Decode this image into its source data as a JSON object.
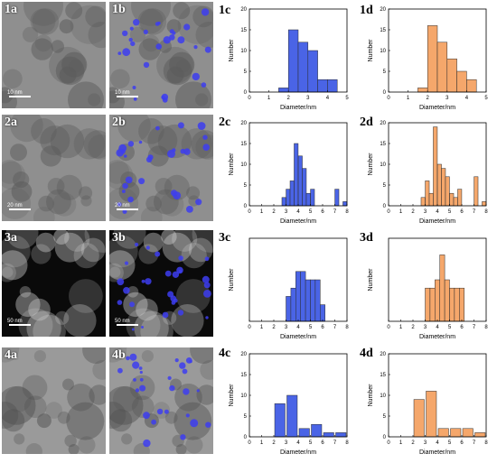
{
  "images": [
    {
      "label": "1a",
      "scale": "10 nm",
      "tone": "tem",
      "np": false
    },
    {
      "label": "1b",
      "scale": "10 nm",
      "tone": "tem",
      "np": true
    },
    {
      "label": "2a",
      "scale": "20 nm",
      "tone": "tem",
      "np": false
    },
    {
      "label": "2b",
      "scale": "20 nm",
      "tone": "tem",
      "np": true
    },
    {
      "label": "3a",
      "scale": "50 nm",
      "tone": "dark",
      "np": false
    },
    {
      "label": "3b",
      "scale": "50 nm",
      "tone": "dark",
      "np": true
    },
    {
      "label": "4a",
      "scale": "",
      "tone": "gray",
      "np": false
    },
    {
      "label": "4b",
      "scale": "",
      "tone": "gray",
      "np": true
    }
  ],
  "colors": {
    "blue": "#4a64e6",
    "orange": "#f5a76b"
  },
  "chart_data": [
    {
      "label": "1c",
      "type": "bar",
      "xlabel": "Diameter/nm",
      "ylabel": "Number",
      "xlim": [
        0,
        5
      ],
      "ylim": [
        0,
        20
      ],
      "xticks": [
        0,
        1,
        2,
        3,
        4,
        5
      ],
      "yticks": [
        0,
        5,
        10,
        15,
        20
      ],
      "width": 0.5,
      "color": "blue",
      "x": [
        1.75,
        2.25,
        2.75,
        3.25,
        3.75,
        4.25
      ],
      "values": [
        1,
        15,
        12,
        10,
        3,
        3
      ]
    },
    {
      "label": "1d",
      "type": "bar",
      "xlabel": "Diameter/nm",
      "ylabel": "Number",
      "xlim": [
        0,
        5
      ],
      "ylim": [
        0,
        20
      ],
      "xticks": [
        0,
        1,
        2,
        3,
        4,
        5
      ],
      "yticks": [
        0,
        5,
        10,
        15,
        20
      ],
      "width": 0.5,
      "color": "orange",
      "x": [
        1.75,
        2.25,
        2.75,
        3.25,
        3.75,
        4.25
      ],
      "values": [
        1,
        16,
        12,
        8,
        5,
        3
      ]
    },
    {
      "label": "2c",
      "type": "bar",
      "xlabel": "Diameter/nm",
      "ylabel": "Number",
      "xlim": [
        0,
        8
      ],
      "ylim": [
        0,
        20
      ],
      "xticks": [
        0,
        1,
        2,
        3,
        4,
        5,
        6,
        7,
        8
      ],
      "yticks": [
        0,
        5,
        10,
        15,
        20
      ],
      "width": 0.33,
      "color": "blue",
      "x": [
        2.83,
        3.17,
        3.5,
        3.83,
        4.17,
        4.5,
        4.83,
        5.17,
        5.5,
        7.17,
        7.83
      ],
      "values": [
        2,
        4,
        6,
        15,
        12,
        9,
        3,
        4,
        0,
        4,
        1
      ]
    },
    {
      "label": "2d",
      "type": "bar",
      "xlabel": "Diameter/nm",
      "ylabel": "Number",
      "xlim": [
        0,
        8
      ],
      "ylim": [
        0,
        20
      ],
      "xticks": [
        0,
        1,
        2,
        3,
        4,
        5,
        6,
        7,
        8
      ],
      "yticks": [
        0,
        5,
        10,
        15,
        20
      ],
      "width": 0.33,
      "color": "orange",
      "x": [
        2.83,
        3.17,
        3.5,
        3.83,
        4.17,
        4.5,
        4.83,
        5.17,
        5.5,
        5.83,
        7.17,
        7.83
      ],
      "values": [
        2,
        6,
        3,
        19,
        10,
        9,
        7,
        3,
        2,
        4,
        7,
        1
      ]
    },
    {
      "label": "3c",
      "type": "bar",
      "xlabel": "Diameter/nm",
      "ylabel": "Number",
      "xlim": [
        0,
        8
      ],
      "ylim": [
        0,
        10
      ],
      "xticks": [
        0,
        1,
        2,
        3,
        4,
        5,
        6,
        7,
        8
      ],
      "yticks": [],
      "width": 0.4,
      "color": "blue",
      "x": [
        3.2,
        3.6,
        4.0,
        4.4,
        4.8,
        5.2,
        5.6,
        6.0
      ],
      "values": [
        3,
        4,
        6,
        6,
        5,
        5,
        5,
        2
      ]
    },
    {
      "label": "3d",
      "type": "bar",
      "xlabel": "Diameter/nm",
      "ylabel": "Number",
      "xlim": [
        0,
        8
      ],
      "ylim": [
        0,
        10
      ],
      "xticks": [
        0,
        1,
        2,
        3,
        4,
        5,
        6,
        7,
        8
      ],
      "yticks": [],
      "width": 0.4,
      "color": "orange",
      "x": [
        3.2,
        3.6,
        4.0,
        4.4,
        4.8,
        5.2,
        5.6,
        6.0
      ],
      "values": [
        4,
        4,
        5,
        8,
        5,
        4,
        4,
        4
      ]
    },
    {
      "label": "4c",
      "type": "bar",
      "xlabel": "Diameter/nm",
      "ylabel": "Number",
      "xlim": [
        0,
        8
      ],
      "ylim": [
        0,
        20
      ],
      "xticks": [
        0,
        1,
        2,
        3,
        4,
        5,
        6,
        7,
        8
      ],
      "yticks": [
        0,
        5,
        10,
        15,
        20
      ],
      "width": 0.85,
      "color": "blue",
      "x": [
        2.5,
        3.5,
        4.5,
        5.5,
        6.5,
        7.5
      ],
      "values": [
        8,
        10,
        2,
        3,
        1,
        1
      ]
    },
    {
      "label": "4d",
      "type": "bar",
      "xlabel": "Diameter/nm",
      "ylabel": "Number",
      "xlim": [
        0,
        8
      ],
      "ylim": [
        0,
        20
      ],
      "xticks": [
        0,
        1,
        2,
        3,
        4,
        5,
        6,
        7,
        8
      ],
      "yticks": [
        0,
        5,
        10,
        15,
        20
      ],
      "width": 0.85,
      "color": "orange",
      "x": [
        2.5,
        3.5,
        4.5,
        5.5,
        6.5,
        7.5
      ],
      "values": [
        9,
        11,
        2,
        2,
        2,
        1
      ]
    }
  ]
}
